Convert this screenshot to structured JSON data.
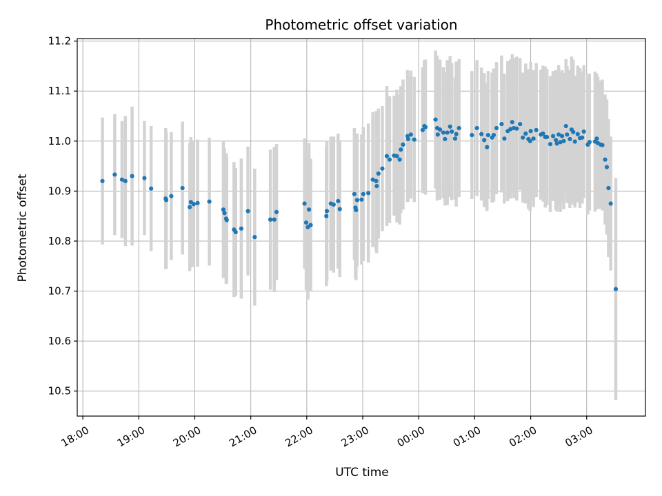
{
  "chart_data": {
    "type": "scatter",
    "title": "Photometric offset variation",
    "xlabel": "UTC time",
    "ylabel": "Photometric offset",
    "xlim": [
      -0.1,
      10.05
    ],
    "ylim": [
      10.45,
      11.205
    ],
    "grid": true,
    "x_unit": "hours after 18:00 UTC",
    "x_ticks": [
      {
        "value": 0,
        "label": "18:00"
      },
      {
        "value": 1,
        "label": "19:00"
      },
      {
        "value": 2,
        "label": "20:00"
      },
      {
        "value": 3,
        "label": "21:00"
      },
      {
        "value": 4,
        "label": "22:00"
      },
      {
        "value": 5,
        "label": "23:00"
      },
      {
        "value": 6,
        "label": "00:00"
      },
      {
        "value": 7,
        "label": "01:00"
      },
      {
        "value": 8,
        "label": "02:00"
      },
      {
        "value": 9,
        "label": "03:00"
      }
    ],
    "y_ticks": [
      {
        "value": 10.5,
        "label": "10.5"
      },
      {
        "value": 10.6,
        "label": "10.6"
      },
      {
        "value": 10.7,
        "label": "10.7"
      },
      {
        "value": 10.8,
        "label": "10.8"
      },
      {
        "value": 10.9,
        "label": "10.9"
      },
      {
        "value": 11.0,
        "label": "11.0"
      },
      {
        "value": 11.1,
        "label": "11.1"
      },
      {
        "value": 11.2,
        "label": "11.2"
      }
    ],
    "series": [
      {
        "name": "Photometric offset",
        "color": "#1f77b4",
        "error_color": "#d3d3d3",
        "points": [
          [
            0.35,
            10.92,
            0.127
          ],
          [
            0.57,
            10.933,
            0.121
          ],
          [
            0.7,
            10.923,
            0.117
          ],
          [
            0.76,
            10.92,
            0.13
          ],
          [
            0.88,
            10.93,
            0.139
          ],
          [
            1.1,
            10.926,
            0.114
          ],
          [
            1.22,
            10.905,
            0.125
          ],
          [
            1.48,
            10.885,
            0.141
          ],
          [
            1.49,
            10.882,
            0.137
          ],
          [
            1.58,
            10.89,
            0.128
          ],
          [
            1.78,
            10.906,
            0.133
          ],
          [
            1.91,
            10.868,
            0.128
          ],
          [
            1.93,
            10.878,
            0.13
          ],
          [
            1.98,
            10.874,
            0.126
          ],
          [
            2.05,
            10.876,
            0.127
          ],
          [
            2.26,
            10.879,
            0.128
          ],
          [
            2.51,
            10.863,
            0.137
          ],
          [
            2.53,
            10.856,
            0.13
          ],
          [
            2.56,
            10.845,
            0.131
          ],
          [
            2.57,
            10.842,
            0.126
          ],
          [
            2.7,
            10.823,
            0.135
          ],
          [
            2.73,
            10.818,
            0.128
          ],
          [
            2.83,
            10.825,
            0.14
          ],
          [
            2.95,
            10.86,
            0.129
          ],
          [
            3.07,
            10.808,
            0.137
          ],
          [
            3.35,
            10.843,
            0.14
          ],
          [
            3.42,
            10.843,
            0.145
          ],
          [
            3.46,
            10.858,
            0.136
          ],
          [
            3.96,
            10.875,
            0.13
          ],
          [
            3.99,
            10.837,
            0.135
          ],
          [
            4.02,
            10.828,
            0.145
          ],
          [
            4.04,
            10.863,
            0.133
          ],
          [
            4.07,
            10.832,
            0.133
          ],
          [
            4.35,
            10.85,
            0.14
          ],
          [
            4.36,
            10.86,
            0.14
          ],
          [
            4.43,
            10.875,
            0.134
          ],
          [
            4.48,
            10.873,
            0.136
          ],
          [
            4.56,
            10.88,
            0.135
          ],
          [
            4.59,
            10.864,
            0.136
          ],
          [
            4.85,
            10.894,
            0.132
          ],
          [
            4.87,
            10.867,
            0.141
          ],
          [
            4.88,
            10.862,
            0.14
          ],
          [
            4.9,
            10.882,
            0.133
          ],
          [
            4.98,
            10.883,
            0.13
          ],
          [
            5.01,
            10.894,
            0.134
          ],
          [
            5.1,
            10.896,
            0.139
          ],
          [
            5.18,
            10.923,
            0.135
          ],
          [
            5.24,
            10.92,
            0.14
          ],
          [
            5.25,
            10.91,
            0.134
          ],
          [
            5.28,
            10.935,
            0.13
          ],
          [
            5.35,
            10.945,
            0.125
          ],
          [
            5.43,
            10.97,
            0.14
          ],
          [
            5.48,
            10.963,
            0.127
          ],
          [
            5.56,
            10.971,
            0.12
          ],
          [
            5.61,
            10.97,
            0.133
          ],
          [
            5.66,
            10.963,
            0.13
          ],
          [
            5.68,
            10.983,
            0.127
          ],
          [
            5.72,
            10.993,
            0.13
          ],
          [
            5.8,
            11.01,
            0.132
          ],
          [
            5.81,
            11.004,
            0.125
          ],
          [
            5.86,
            11.013,
            0.128
          ],
          [
            5.92,
            11.003,
            0.125
          ],
          [
            6.07,
            11.022,
            0.126
          ],
          [
            6.1,
            11.03,
            0.132
          ],
          [
            6.12,
            11.028,
            0.135
          ],
          [
            6.3,
            11.043,
            0.138
          ],
          [
            6.33,
            11.026,
            0.145
          ],
          [
            6.34,
            11.013,
            0.13
          ],
          [
            6.38,
            11.023,
            0.14
          ],
          [
            6.44,
            11.017,
            0.131
          ],
          [
            6.47,
            11.004,
            0.133
          ],
          [
            6.51,
            11.017,
            0.145
          ],
          [
            6.56,
            11.029,
            0.141
          ],
          [
            6.59,
            11.019,
            0.137
          ],
          [
            6.65,
            11.005,
            0.122
          ],
          [
            6.67,
            11.014,
            0.145
          ],
          [
            6.72,
            11.026,
            0.138
          ],
          [
            6.95,
            11.012,
            0.128
          ],
          [
            7.04,
            11.026,
            0.136
          ],
          [
            7.12,
            11.014,
            0.133
          ],
          [
            7.17,
            11.002,
            0.134
          ],
          [
            7.22,
            10.988,
            0.128
          ],
          [
            7.24,
            11.012,
            0.128
          ],
          [
            7.31,
            11.007,
            0.13
          ],
          [
            7.34,
            11.012,
            0.133
          ],
          [
            7.39,
            11.026,
            0.132
          ],
          [
            7.48,
            11.034,
            0.137
          ],
          [
            7.53,
            11.005,
            0.13
          ],
          [
            7.59,
            11.02,
            0.14
          ],
          [
            7.64,
            11.024,
            0.139
          ],
          [
            7.67,
            11.038,
            0.136
          ],
          [
            7.7,
            11.026,
            0.14
          ],
          [
            7.75,
            11.025,
            0.144
          ],
          [
            7.81,
            11.034,
            0.132
          ],
          [
            7.86,
            11.007,
            0.13
          ],
          [
            7.91,
            11.015,
            0.14
          ],
          [
            7.96,
            11.004,
            0.14
          ],
          [
            7.99,
            11.0,
            0.14
          ],
          [
            8.0,
            11.02,
            0.138
          ],
          [
            8.05,
            11.005,
            0.137
          ],
          [
            8.1,
            11.022,
            0.134
          ],
          [
            8.18,
            11.013,
            0.13
          ],
          [
            8.22,
            11.015,
            0.136
          ],
          [
            8.26,
            11.008,
            0.141
          ],
          [
            8.29,
            11.008,
            0.136
          ],
          [
            8.35,
            10.994,
            0.136
          ],
          [
            8.4,
            11.01,
            0.13
          ],
          [
            8.45,
            11.002,
            0.14
          ],
          [
            8.47,
            10.995,
            0.136
          ],
          [
            8.5,
            11.013,
            0.139
          ],
          [
            8.53,
            10.998,
            0.14
          ],
          [
            8.56,
            11.01,
            0.132
          ],
          [
            8.59,
            11.0,
            0.136
          ],
          [
            8.63,
            11.03,
            0.134
          ],
          [
            8.65,
            11.013,
            0.137
          ],
          [
            8.7,
            11.004,
            0.138
          ],
          [
            8.73,
            11.023,
            0.146
          ],
          [
            8.76,
            11.018,
            0.145
          ],
          [
            8.79,
            10.999,
            0.132
          ],
          [
            8.84,
            11.014,
            0.137
          ],
          [
            8.88,
            11.006,
            0.14
          ],
          [
            8.92,
            11.007,
            0.132
          ],
          [
            8.95,
            11.019,
            0.133
          ],
          [
            9.02,
            10.993,
            0.14
          ],
          [
            9.05,
            10.998,
            0.137
          ],
          [
            9.15,
            10.999,
            0.14
          ],
          [
            9.18,
            11.005,
            0.13
          ],
          [
            9.2,
            10.996,
            0.132
          ],
          [
            9.25,
            10.993,
            0.128
          ],
          [
            9.28,
            10.992,
            0.131
          ],
          [
            9.33,
            10.963,
            0.13
          ],
          [
            9.36,
            10.948,
            0.135
          ],
          [
            9.39,
            10.906,
            0.138
          ],
          [
            9.43,
            10.875,
            0.134
          ],
          [
            9.52,
            10.704,
            0.222
          ]
        ]
      }
    ]
  }
}
